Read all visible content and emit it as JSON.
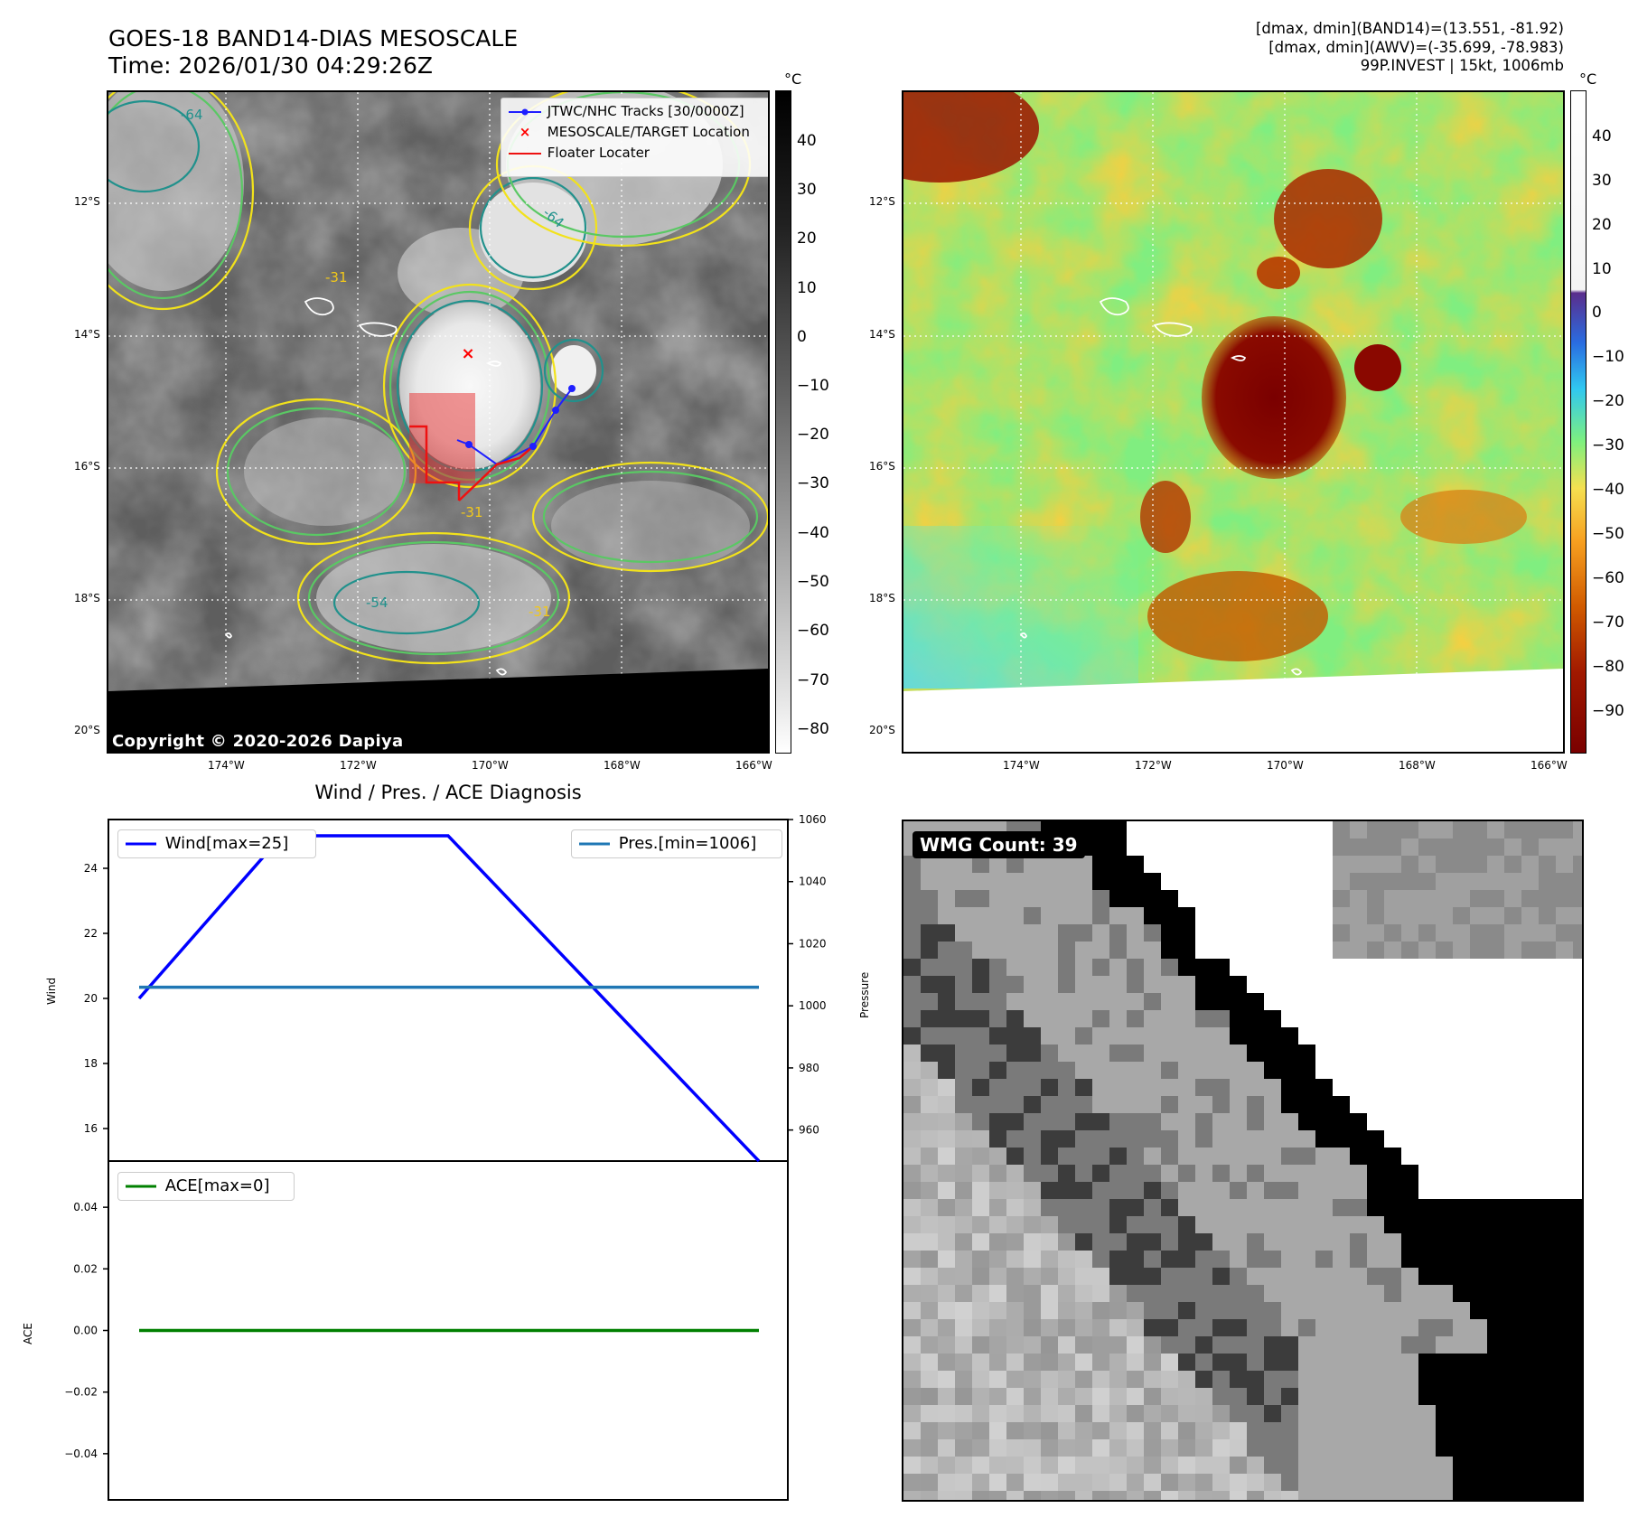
{
  "header": {
    "title_line1": "GOES-18 BAND14-DIAS MESOSCALE",
    "title_line2": "Time: 2026/01/30 04:29:26Z",
    "stats_line1": "[dmax, dmin](BAND14)=(13.551, -81.92)",
    "stats_line2": "[dmax, dmin](AWV)=(-35.699, -78.983)",
    "stats_line3": "99P.INVEST | 15kt, 1006mb"
  },
  "map": {
    "lat_labels": [
      "12°S",
      "14°S",
      "16°S",
      "18°S",
      "20°S"
    ],
    "lon_labels": [
      "174°W",
      "172°W",
      "170°W",
      "168°W",
      "166°W"
    ],
    "contour_labels": [
      "-64",
      "-31",
      "-54"
    ],
    "copyright": "Copyright © 2020-2026 Dapiya",
    "legend": {
      "tracks": "JTWC/NHC Tracks [30/0000Z]",
      "target": "MESOSCALE/TARGET Location",
      "floater": "Floater Locater"
    },
    "colors": {
      "track": "#1f1fff",
      "target": "#ff0000",
      "floater": "#ee1111",
      "contour_yellow": "#f2e21b",
      "contour_green": "#5ac864",
      "contour_teal": "#21918c"
    }
  },
  "colorbar_ir": {
    "unit": "°C",
    "ticks": [
      "40",
      "30",
      "20",
      "10",
      "0",
      "−10",
      "−20",
      "−30",
      "−40",
      "−50",
      "−60",
      "−70",
      "−80"
    ]
  },
  "colorbar_awv": {
    "unit": "°C",
    "ticks": [
      "40",
      "30",
      "20",
      "10",
      "0",
      "−10",
      "−20",
      "−30",
      "−40",
      "−50",
      "−60",
      "−70",
      "−80",
      "−90"
    ]
  },
  "wmg": {
    "label": "WMG Count: 39"
  },
  "chart_data": [
    {
      "type": "line",
      "title": "Wind / Pres. / ACE Diagnosis",
      "ylabel": "Wind",
      "ylabel_right": "Pressure",
      "ylim": [
        15,
        25.5
      ],
      "y_ticks": [
        16,
        18,
        20,
        22,
        24
      ],
      "ylim_right": [
        950,
        1060
      ],
      "y_ticks_right": [
        960,
        980,
        1000,
        1020,
        1040,
        1060
      ],
      "series": [
        {
          "name": "Wind[max=25]",
          "axis": "left",
          "color": "#0000ff",
          "values": [
            20,
            25,
            25,
            15
          ]
        },
        {
          "name": "Pres.[min=1006]",
          "axis": "right",
          "color": "#1f77b4",
          "values": [
            1006,
            1006,
            1006,
            1006
          ]
        }
      ]
    },
    {
      "type": "line",
      "ylabel": "ACE",
      "ylim": [
        -0.055,
        0.055
      ],
      "y_ticks": [
        "0.04",
        "0.02",
        "0.00",
        "−0.02",
        "−0.04"
      ],
      "series": [
        {
          "name": "ACE[max=0]",
          "color": "#008000",
          "values": [
            0,
            0
          ]
        }
      ]
    }
  ]
}
